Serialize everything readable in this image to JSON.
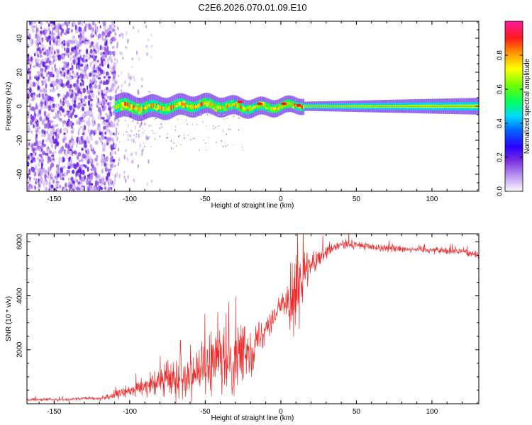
{
  "title": "C2E6.2026.070.01.09.E10",
  "colors": {
    "axis": "#000000",
    "snr_line": "#ee2a2a",
    "scatter_points": "#7a2fe0"
  },
  "chart_data": [
    {
      "type": "heatmap",
      "name": "spectrogram",
      "xlabel": "Height of straight line (km)",
      "ylabel": "Frequency (Hz)",
      "xlim": [
        -168,
        131
      ],
      "ylim": [
        -50,
        50
      ],
      "x_ticks": [
        -150,
        -100,
        -50,
        0,
        50,
        100
      ],
      "y_ticks": [
        -40,
        -20,
        0,
        20,
        40
      ],
      "colorbar": {
        "label": "Normalized spectral amplitude",
        "range": [
          0,
          1
        ],
        "ticks": [
          "0.0",
          "0.2",
          "0.4",
          "0.6",
          "0.8"
        ],
        "tick_values": [
          0.0,
          0.2,
          0.4,
          0.6,
          0.8
        ],
        "colormap": [
          [
            0.0,
            "#ffffff"
          ],
          [
            0.03,
            "#e6d6f8"
          ],
          [
            0.1,
            "#b48af0"
          ],
          [
            0.18,
            "#7a2fe0"
          ],
          [
            0.26,
            "#2a00ff"
          ],
          [
            0.36,
            "#0066ff"
          ],
          [
            0.44,
            "#00d8ff"
          ],
          [
            0.52,
            "#00ff66"
          ],
          [
            0.62,
            "#6aff00"
          ],
          [
            0.72,
            "#ffff00"
          ],
          [
            0.82,
            "#ff8c00"
          ],
          [
            0.9,
            "#ff1a1a"
          ],
          [
            1.0,
            "#ff1aa0"
          ]
        ]
      },
      "noise_region_x": [
        -168,
        -110
      ],
      "sparse_noise_x": [
        -110,
        -85
      ],
      "signal_band": {
        "x_range": [
          -110,
          131
        ],
        "center_frequency": 0,
        "half_width_hz": 4
      },
      "peaks": [
        {
          "x": -27,
          "freq": 2.5
        },
        {
          "x": -14,
          "freq": 1.5
        },
        {
          "x": 2,
          "freq": 1.5
        },
        {
          "x": 12,
          "freq": 0.5
        }
      ]
    },
    {
      "type": "line",
      "name": "snr",
      "xlabel": "Height of straight line (km)",
      "ylabel": "SNR (10 * v/v)",
      "xlim": [
        -168,
        131
      ],
      "ylim": [
        0,
        6300
      ],
      "x_ticks": [
        -150,
        -100,
        -50,
        0,
        50,
        100
      ],
      "y_ticks": [
        2000,
        4000,
        6000
      ],
      "profile": {
        "x": [
          -168,
          -140,
          -120,
          -110,
          -100,
          -90,
          -80,
          -70,
          -60,
          -50,
          -40,
          -30,
          -20,
          -10,
          0,
          10,
          20,
          30,
          40,
          50,
          60,
          80,
          100,
          120,
          131
        ],
        "mean": [
          150,
          160,
          200,
          300,
          500,
          650,
          800,
          1000,
          1150,
          1300,
          1500,
          1650,
          2000,
          2800,
          3600,
          4300,
          5100,
          5600,
          5900,
          5900,
          5800,
          5750,
          5700,
          5650,
          5500
        ],
        "spread": [
          60,
          60,
          80,
          150,
          250,
          350,
          500,
          800,
          1000,
          1200,
          1400,
          1300,
          1000,
          700,
          400,
          1400,
          500,
          250,
          200,
          180,
          160,
          150,
          150,
          150,
          150
        ]
      }
    }
  ]
}
